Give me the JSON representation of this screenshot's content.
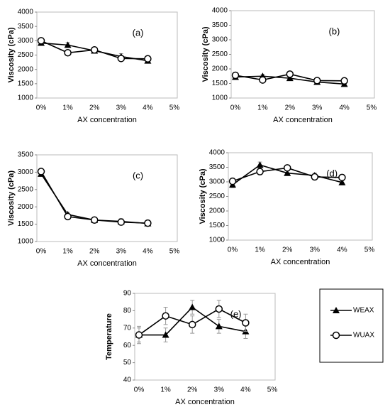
{
  "chart_data": [
    {
      "type": "line",
      "annotation": "(a)",
      "xlabel": "AX concentration",
      "ylabel": "Viscosity (cPa)",
      "categories": [
        "0%",
        "1%",
        "2%",
        "3%",
        "4%",
        "5%"
      ],
      "ylim": [
        1000,
        4000
      ],
      "yticks": [
        1000,
        1500,
        2000,
        2500,
        3000,
        3500,
        4000
      ],
      "series": [
        {
          "color": "#000000",
          "marker": "triangle",
          "values": [
            2920,
            2850,
            2650,
            2450,
            2300,
            null
          ],
          "errors": [
            60,
            90,
            80,
            100,
            80,
            null
          ]
        },
        {
          "color": "#000000",
          "marker": "circle",
          "values": [
            3000,
            2580,
            2680,
            2380,
            2370,
            null
          ],
          "errors": [
            60,
            60,
            80,
            80,
            80,
            null
          ]
        }
      ]
    },
    {
      "type": "line",
      "annotation": "(b)",
      "xlabel": "AX concentration",
      "ylabel": "Viscosity (cPa)",
      "categories": [
        "0%",
        "1%",
        "2%",
        "3%",
        "4%",
        "5%"
      ],
      "ylim": [
        1000,
        4000
      ],
      "yticks": [
        1000,
        1500,
        2000,
        2500,
        3000,
        3500,
        4000
      ],
      "series": [
        {
          "color": "#000000",
          "marker": "triangle",
          "values": [
            1720,
            1750,
            1680,
            1550,
            1480,
            null
          ],
          "errors": [
            60,
            60,
            60,
            50,
            50,
            null
          ]
        },
        {
          "color": "#000000",
          "marker": "circle",
          "values": [
            1780,
            1620,
            1820,
            1600,
            1590,
            null
          ],
          "errors": [
            60,
            60,
            60,
            50,
            50,
            null
          ]
        }
      ]
    },
    {
      "type": "line",
      "annotation": "(c)",
      "xlabel": "AX concentration",
      "ylabel": "Viscosity (cPa)",
      "categories": [
        "0%",
        "1%",
        "2%",
        "3%",
        "4%",
        "5%"
      ],
      "ylim": [
        1000,
        3500
      ],
      "yticks": [
        1000,
        1500,
        2000,
        2500,
        3000,
        3500
      ],
      "series": [
        {
          "color": "#000000",
          "marker": "triangle",
          "values": [
            2950,
            1780,
            1620,
            1580,
            1520,
            null
          ],
          "errors": [
            60,
            60,
            60,
            80,
            50,
            null
          ]
        },
        {
          "color": "#000000",
          "marker": "circle",
          "values": [
            3020,
            1720,
            1620,
            1560,
            1530,
            null
          ],
          "errors": [
            60,
            60,
            60,
            80,
            50,
            null
          ]
        }
      ]
    },
    {
      "type": "line",
      "annotation": "(d)",
      "xlabel": "AX concentration",
      "ylabel": "Viscosity (cPa)",
      "categories": [
        "0%",
        "1%",
        "2%",
        "3%",
        "4%",
        "5%"
      ],
      "ylim": [
        1000,
        4000
      ],
      "yticks": [
        1000,
        1500,
        2000,
        2500,
        3000,
        3500,
        4000
      ],
      "series": [
        {
          "color": "#000000",
          "marker": "triangle",
          "values": [
            2900,
            3580,
            3300,
            3220,
            2980,
            null
          ],
          "errors": [
            100,
            100,
            80,
            80,
            80,
            null
          ]
        },
        {
          "color": "#000000",
          "marker": "circle",
          "values": [
            3020,
            3350,
            3480,
            3170,
            3150,
            null
          ],
          "errors": [
            100,
            100,
            100,
            100,
            100,
            null
          ]
        }
      ]
    },
    {
      "type": "line",
      "annotation": "(e)",
      "xlabel": "AX concentration",
      "ylabel": "Temperature",
      "categories": [
        "0%",
        "1%",
        "2%",
        "3%",
        "4%",
        "5%"
      ],
      "ylim": [
        40,
        90
      ],
      "yticks": [
        40,
        50,
        60,
        70,
        80,
        90
      ],
      "series": [
        {
          "name": "WEAX",
          "color": "#000000",
          "marker": "triangle",
          "values": [
            66,
            66,
            82,
            71,
            68,
            null
          ],
          "errors": [
            4,
            4,
            4,
            4,
            4,
            null
          ]
        },
        {
          "name": "WUAX",
          "color": "#000000",
          "marker": "circle",
          "values": [
            66,
            77,
            72,
            81,
            73,
            null
          ],
          "errors": [
            5,
            5,
            5,
            5,
            5,
            null
          ]
        }
      ]
    }
  ]
}
